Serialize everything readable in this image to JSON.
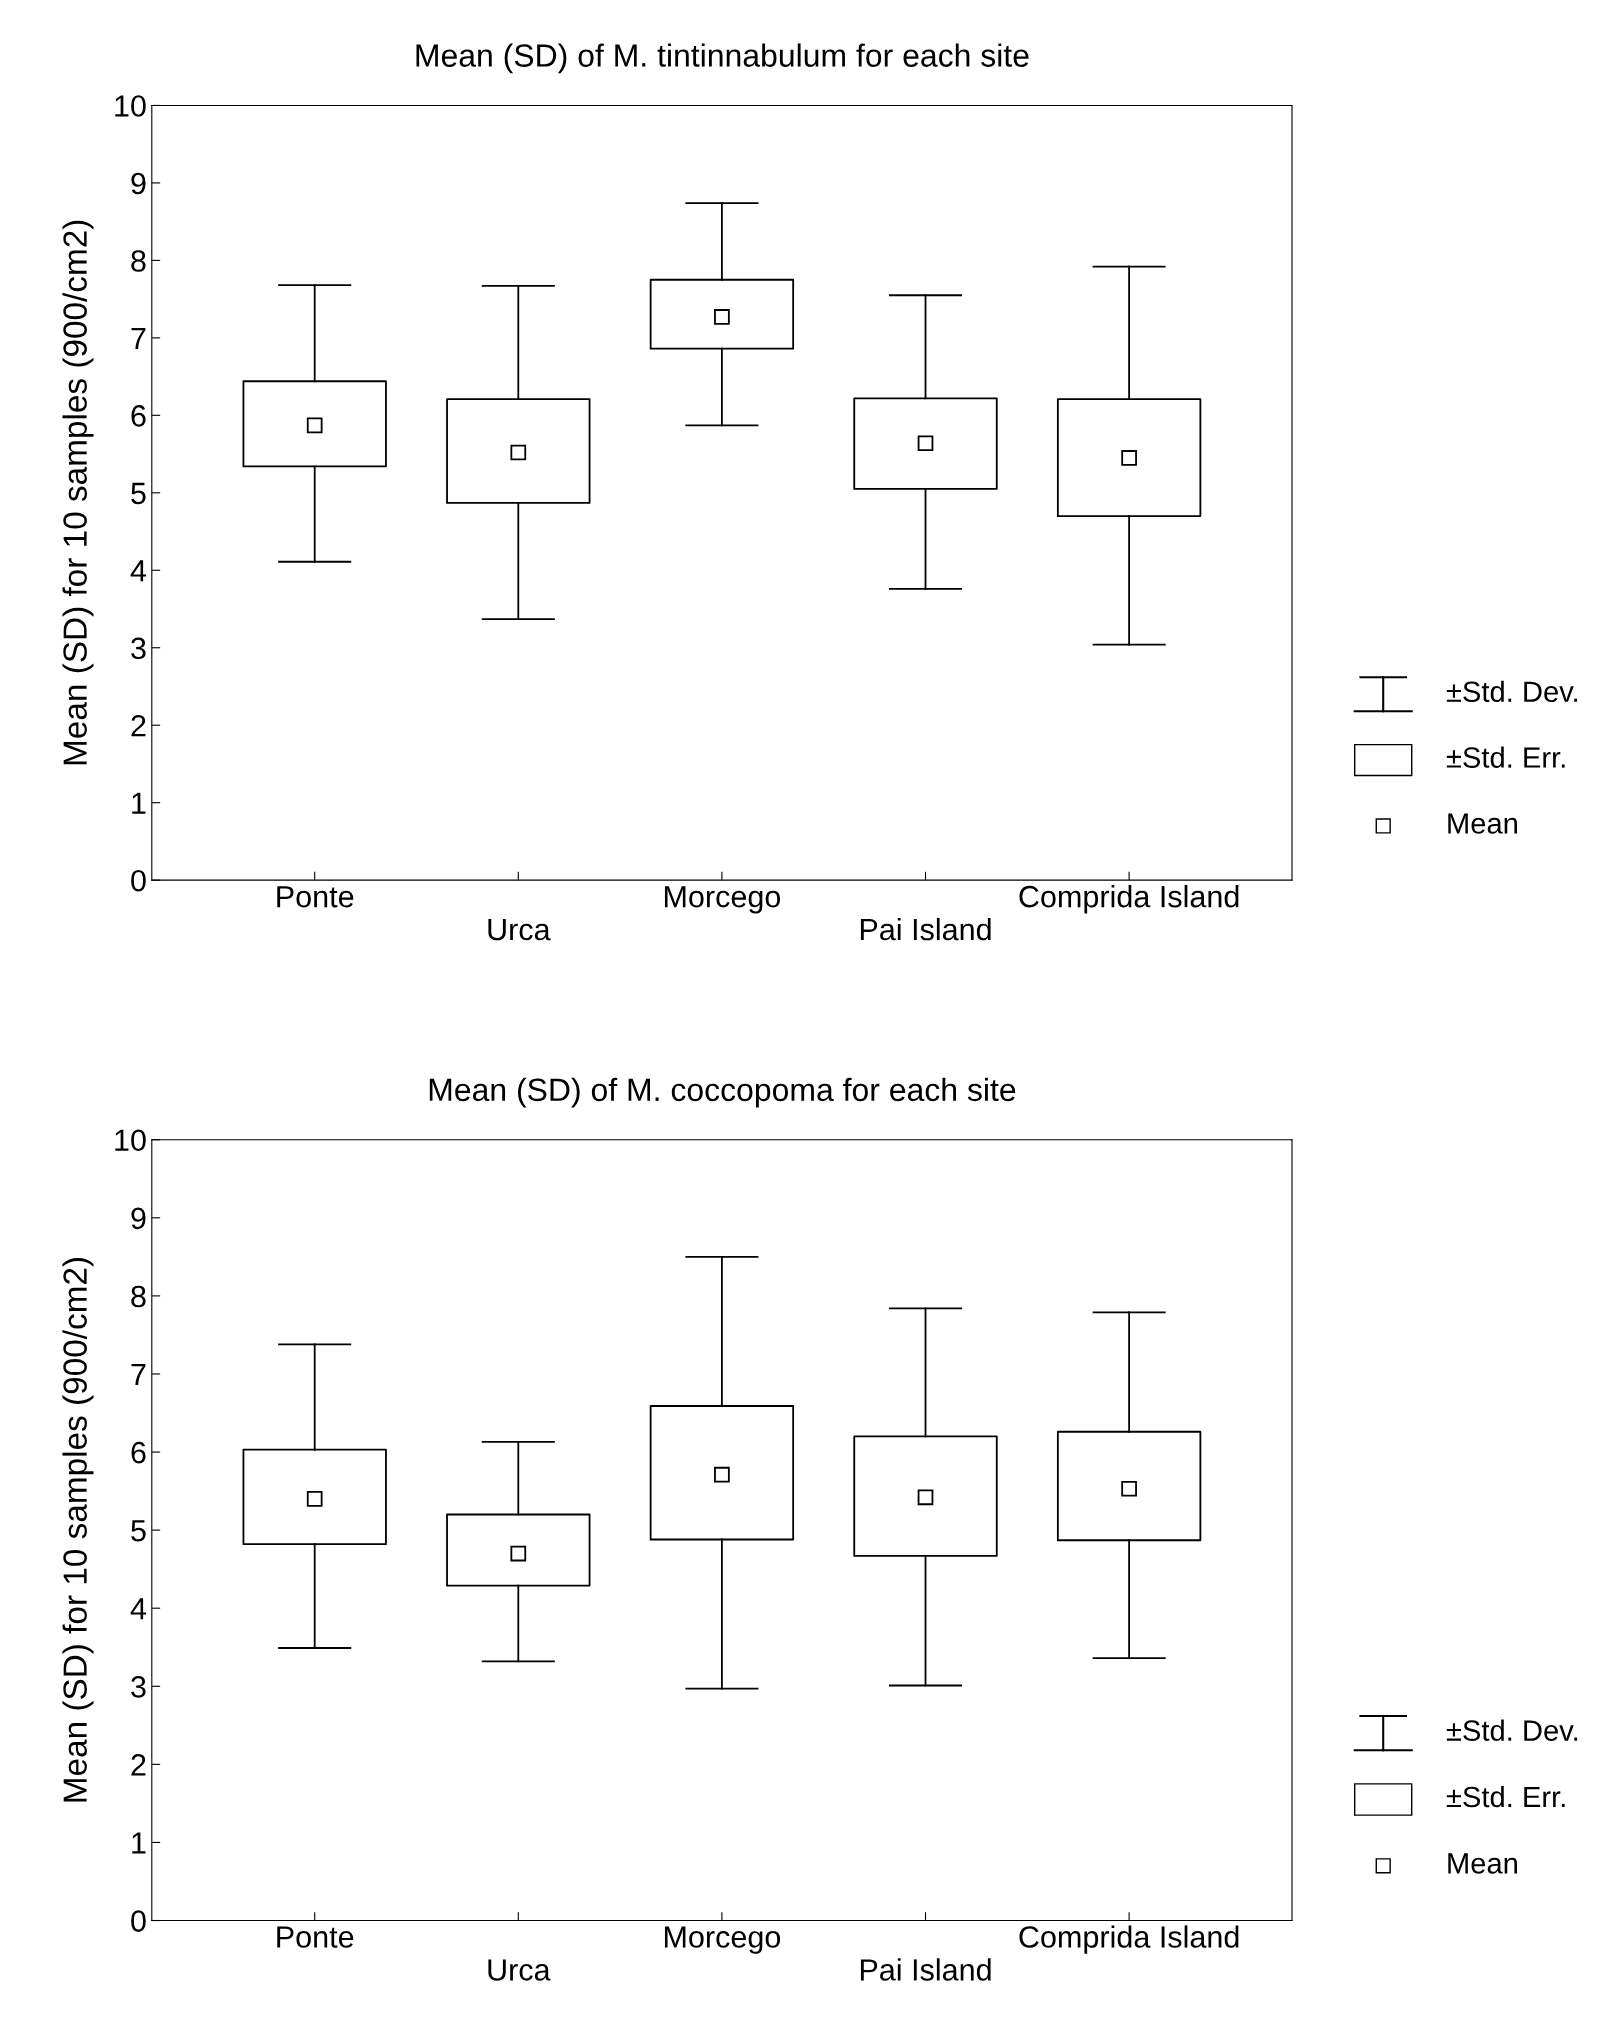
{
  "chart_data": [
    {
      "type": "box",
      "title": "Mean (SD) of M. tintinnabulum for each site",
      "ylabel": "Mean (SD) for 10 samples (900/cm2)",
      "categories": [
        "Ponte",
        "Urca",
        "Morcego",
        "Pai Island",
        "Comprida Island"
      ],
      "boxes": [
        {
          "low": 4.11,
          "q1": 5.34,
          "median": 5.87,
          "q3": 6.44,
          "high": 7.68
        },
        {
          "low": 3.37,
          "q1": 4.87,
          "median": 5.52,
          "q3": 6.21,
          "high": 7.67
        },
        {
          "low": 5.87,
          "q1": 6.86,
          "median": 7.27,
          "q3": 7.75,
          "high": 8.74
        },
        {
          "low": 3.76,
          "q1": 5.05,
          "median": 5.64,
          "q3": 6.22,
          "high": 7.55
        },
        {
          "low": 3.04,
          "q1": 4.7,
          "median": 5.45,
          "q3": 6.21,
          "high": 7.92
        }
      ],
      "ylim": [
        0,
        10
      ],
      "yticks": [
        0,
        1,
        2,
        3,
        4,
        5,
        6,
        7,
        8,
        9,
        10
      ],
      "grid": false,
      "marker": "square",
      "annotations": [
        "±Std. Dev.",
        "±Std. Err.",
        "Mean"
      ]
    },
    {
      "type": "box",
      "title": "Mean (SD) of M. coccopoma for each site",
      "ylabel": "Mean (SD) for 10 samples (900/cm2)",
      "categories": [
        "Ponte",
        "Urca",
        "Morcego",
        "Pai Island",
        "Comprida Island"
      ],
      "boxes": [
        {
          "low": 3.49,
          "q1": 4.82,
          "median": 5.4,
          "q3": 6.03,
          "high": 7.38
        },
        {
          "low": 3.32,
          "q1": 4.29,
          "median": 4.7,
          "q3": 5.2,
          "high": 6.13
        },
        {
          "low": 2.97,
          "q1": 4.88,
          "median": 5.71,
          "q3": 6.59,
          "high": 8.5
        },
        {
          "low": 3.01,
          "q1": 4.67,
          "median": 5.42,
          "q3": 6.2,
          "high": 7.84
        },
        {
          "low": 3.36,
          "q1": 4.87,
          "median": 5.53,
          "q3": 6.26,
          "high": 7.79
        }
      ],
      "ylim": [
        0,
        10
      ],
      "yticks": [
        0,
        1,
        2,
        3,
        4,
        5,
        6,
        7,
        8,
        9,
        10
      ],
      "grid": false,
      "marker": "square",
      "annotations": [
        "±Std. Dev.",
        "±Std. Err.",
        "Mean"
      ]
    }
  ]
}
